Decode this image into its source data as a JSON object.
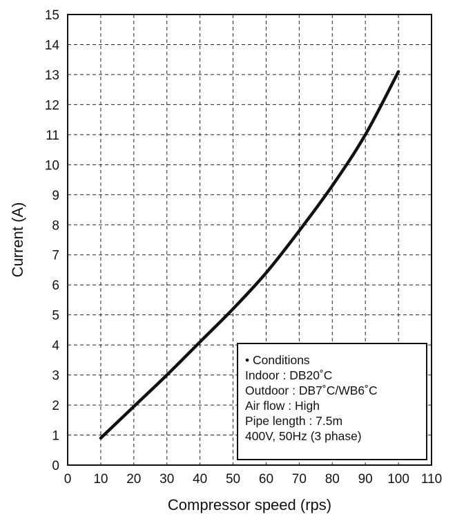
{
  "chart_data": {
    "type": "line",
    "title": "",
    "xlabel": "Compressor speed (rps)",
    "ylabel": "Current (A)",
    "xlim": [
      0,
      110
    ],
    "ylim": [
      0,
      15
    ],
    "x_ticks": [
      0,
      10,
      20,
      30,
      40,
      50,
      60,
      70,
      80,
      90,
      100,
      110
    ],
    "y_ticks": [
      0,
      1,
      2,
      3,
      4,
      5,
      6,
      7,
      8,
      9,
      10,
      11,
      12,
      13,
      14,
      15
    ],
    "grid": true,
    "series": [
      {
        "x": [
          10,
          20,
          30,
          40,
          50,
          60,
          70,
          80,
          90,
          100
        ],
        "y": [
          0.9,
          1.95,
          3.0,
          4.1,
          5.2,
          6.4,
          7.8,
          9.3,
          11.0,
          13.1
        ]
      }
    ],
    "annotation": {
      "lines": [
        "• Conditions",
        "Indoor : DB20˚C",
        "Outdoor : DB7˚C/WB6˚C",
        "Air flow : High",
        "Pipe length : 7.5m",
        "400V, 50Hz (3 phase)"
      ],
      "placement": "bottom-right"
    }
  }
}
